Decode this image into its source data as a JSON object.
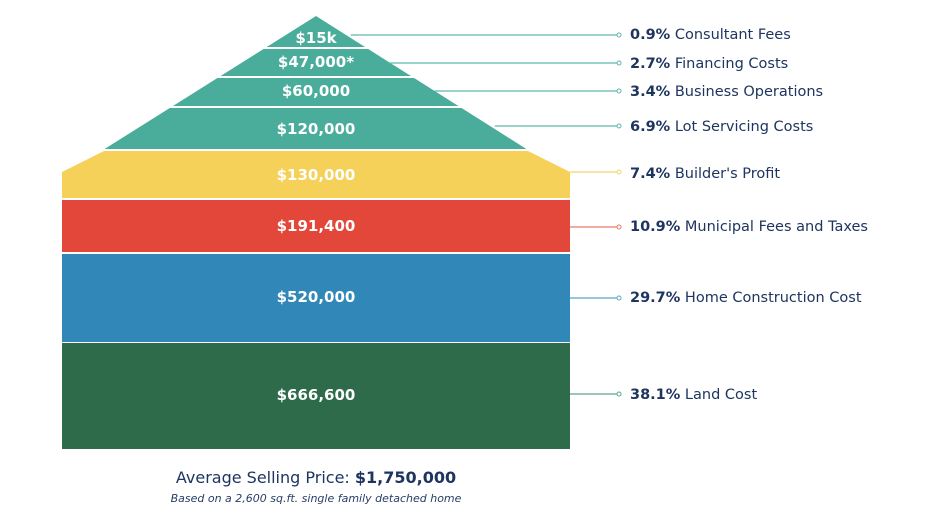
{
  "chart_data": {
    "type": "stacked-house",
    "segments": [
      {
        "value_label": "$666,600",
        "value": 666600,
        "percent": "38.1%",
        "name": "Land Cost",
        "color": "#2e6b4a"
      },
      {
        "value_label": "$520,000",
        "value": 520000,
        "percent": "29.7%",
        "name": "Home Construction Cost",
        "color": "#3187b8"
      },
      {
        "value_label": "$191,400",
        "value": 191400,
        "percent": "10.9%",
        "name": "Municipal Fees and Taxes",
        "color": "#e2473a"
      },
      {
        "value_label": "$130,000",
        "value": 130000,
        "percent": "7.4%",
        "name": "Builder's Profit",
        "color": "#f5d15a"
      },
      {
        "value_label": "$120,000",
        "value": 120000,
        "percent": "6.9%",
        "name": "Lot Servicing Costs",
        "color": "#4aad9c"
      },
      {
        "value_label": "$60,000",
        "value": 60000,
        "percent": "3.4%",
        "name": "Business Operations",
        "color": "#4aad9c"
      },
      {
        "value_label": "$47,000*",
        "value": 47000,
        "percent": "2.7%",
        "name": "Financing Costs",
        "color": "#4aad9c"
      },
      {
        "value_label": "$15k",
        "value": 15000,
        "percent": "0.9%",
        "name": "Consultant Fees",
        "color": "#4aad9c"
      }
    ],
    "leader_colors": {
      "Land Cost": "#5aa58f",
      "Home Construction Cost": "#5aa5c8",
      "Municipal Fees and Taxes": "#e87b6a",
      "Builder's Profit": "#f2d46a",
      "Lot Servicing Costs": "#5fb7aa",
      "Business Operations": "#5fb7aa",
      "Financing Costs": "#5fb7aa",
      "Consultant Fees": "#5fb7aa"
    }
  },
  "caption": {
    "label": "Average Selling Price:",
    "value": "$1,750,000",
    "note": "Based on a 2,600 sq.ft. single family detached home"
  }
}
